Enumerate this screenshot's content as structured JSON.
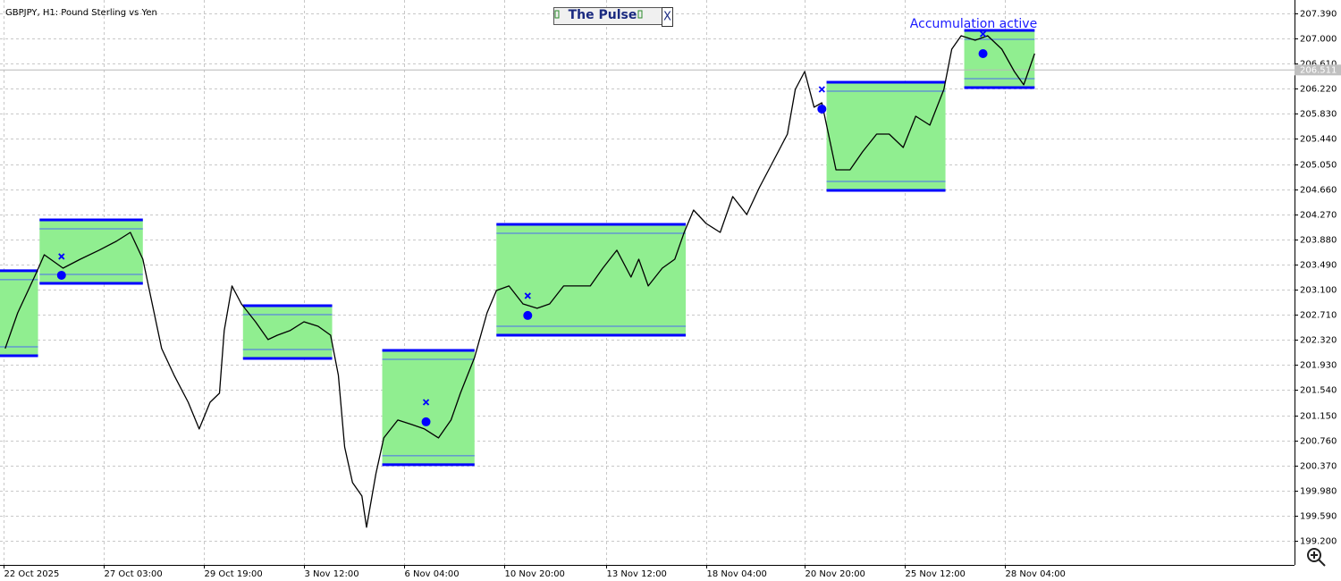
{
  "chart_data": {
    "type": "line",
    "title": "GBPJPY, H1:  Pound Sterling vs Yen",
    "color": "#000000",
    "x": [
      1,
      9,
      21,
      26,
      38,
      49,
      61,
      72,
      81,
      89,
      95,
      101,
      109,
      118,
      125,
      132,
      138,
      141,
      146,
      152,
      161,
      169,
      175,
      183,
      192,
      201,
      209,
      214,
      218,
      223,
      229,
      232,
      238,
      243,
      252,
      261,
      269,
      278,
      286,
      292,
      301,
      309,
      315,
      323,
      332,
      341,
      349,
      358,
      366,
      375,
      383,
      392,
      401,
      406,
      412,
      421,
      429,
      435,
      441,
      449,
      458,
      466,
      475,
      483,
      492,
      501,
      506,
      512,
      518,
      523,
      532,
      541,
      549,
      558,
      566,
      575,
      583,
      592,
      601,
      606,
      612,
      621,
      629,
      638,
      646,
      652,
      659
    ],
    "values": [
      202.185,
      202.74,
      203.365,
      203.642,
      203.434,
      203.573,
      203.712,
      203.85,
      203.989,
      203.573,
      202.879,
      202.185,
      201.769,
      201.352,
      200.936,
      201.352,
      201.491,
      202.463,
      203.157,
      202.879,
      202.601,
      202.324,
      202.393,
      202.463,
      202.601,
      202.532,
      202.393,
      201.769,
      200.658,
      200.103,
      199.895,
      199.409,
      200.242,
      200.797,
      201.075,
      201.005,
      200.936,
      200.797,
      201.075,
      201.491,
      202.046,
      202.74,
      203.087,
      203.157,
      202.879,
      202.81,
      202.879,
      203.157,
      203.157,
      203.157,
      203.434,
      203.712,
      203.295,
      203.573,
      203.157,
      203.434,
      203.573,
      203.989,
      204.336,
      204.128,
      203.989,
      204.545,
      204.267,
      204.683,
      205.1,
      205.516,
      206.21,
      206.488,
      205.933,
      206.002,
      204.961,
      204.961,
      205.239,
      205.516,
      205.516,
      205.308,
      205.794,
      205.655,
      206.21,
      206.835,
      207.043,
      206.974,
      207.043,
      206.835,
      206.488,
      206.28,
      206.765
    ],
    "zone_fill": "#90ee90",
    "zone_border": "#0000ff",
    "zones": [
      {
        "x": [
          -2.3,
          22
        ],
        "range": [
          203.393,
          202.074
        ]
      },
      {
        "x": [
          23,
          89
        ],
        "range": [
          204.184,
          203.198
        ]
      },
      {
        "x": [
          153,
          210
        ],
        "range": [
          202.851,
          202.032
        ]
      },
      {
        "x": [
          242,
          301
        ],
        "range": [
          202.157,
          200.381
        ]
      },
      {
        "x": [
          315,
          436
        ],
        "range": [
          204.114,
          202.393
        ]
      },
      {
        "x": [
          526,
          602
        ],
        "range": [
          206.321,
          204.642
        ]
      },
      {
        "x": [
          614,
          659
        ],
        "range": [
          207.126,
          206.238
        ]
      }
    ],
    "signal_color": "#0000ff",
    "signals": [
      {
        "x": 37,
        "dot": 203.323,
        "cross": 203.615
      },
      {
        "x": 270,
        "dot": 201.047,
        "cross": 201.352
      },
      {
        "x": 335,
        "dot": 202.699,
        "cross": 203.004
      },
      {
        "x": 523,
        "dot": 205.905,
        "cross": 206.21
      },
      {
        "x": 626,
        "dot": 206.765,
        "cross": 207.071
      }
    ],
    "annotations": [
      "Accumulation active"
    ],
    "current_price": 206.511,
    "xlim": [
      -2.3,
      825.1
    ],
    "xticks": [
      {
        "value": 0,
        "label": "22 Oct 2025"
      },
      {
        "value": 64,
        "label": "27 Oct 03:00"
      },
      {
        "value": 128,
        "label": "29 Oct 19:00"
      },
      {
        "value": 192,
        "label": "3 Nov 12:00"
      },
      {
        "value": 256,
        "label": "6 Nov 04:00"
      },
      {
        "value": 320,
        "label": "10 Nov 20:00"
      },
      {
        "value": 385,
        "label": "13 Nov 12:00"
      },
      {
        "value": 449,
        "label": "18 Nov 04:00"
      },
      {
        "value": 512,
        "label": "20 Nov 20:00"
      },
      {
        "value": 576,
        "label": "25 Nov 12:00"
      },
      {
        "value": 640,
        "label": "28 Nov 04:00"
      }
    ],
    "ylim": [
      198.825,
      207.598
    ],
    "yticks": [
      {
        "value": 207.39,
        "label": "207.390"
      },
      {
        "value": 207.0,
        "label": "207.000"
      },
      {
        "value": 206.61,
        "label": "206.610"
      },
      {
        "value": 206.22,
        "label": "206.220"
      },
      {
        "value": 205.83,
        "label": "205.830"
      },
      {
        "value": 205.44,
        "label": "205.440"
      },
      {
        "value": 205.05,
        "label": "205.050"
      },
      {
        "value": 204.66,
        "label": "204.660"
      },
      {
        "value": 204.27,
        "label": "204.270"
      },
      {
        "value": 203.88,
        "label": "203.880"
      },
      {
        "value": 203.49,
        "label": "203.490"
      },
      {
        "value": 203.1,
        "label": "203.100"
      },
      {
        "value": 202.71,
        "label": "202.710"
      },
      {
        "value": 202.32,
        "label": "202.320"
      },
      {
        "value": 201.93,
        "label": "201.930"
      },
      {
        "value": 201.54,
        "label": "201.540"
      },
      {
        "value": 201.15,
        "label": "201.150"
      },
      {
        "value": 200.76,
        "label": "200.760"
      },
      {
        "value": 200.37,
        "label": "200.370"
      },
      {
        "value": 199.98,
        "label": "199.980"
      },
      {
        "value": 199.59,
        "label": "199.590"
      },
      {
        "value": 199.2,
        "label": "199.200"
      }
    ],
    "grid": true
  },
  "panel": {
    "title": "The Pulse",
    "close": "X"
  }
}
